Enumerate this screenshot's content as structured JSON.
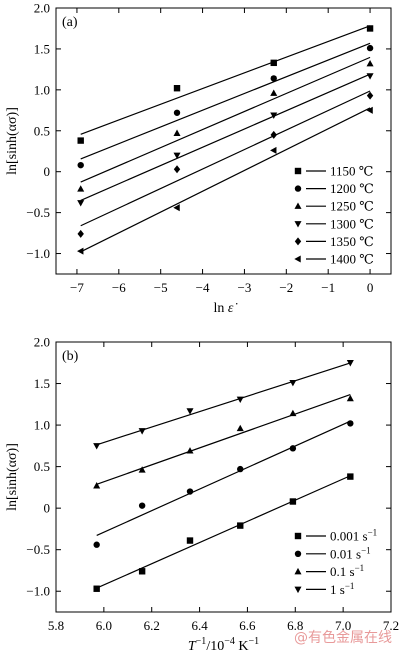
{
  "chart_data": [
    {
      "panel_label": "(a)",
      "type": "scatter",
      "xlabel_main": "ln ",
      "xlabel_sym": "ε̇",
      "ylabel": "ln[sinh(ασ)]",
      "xlim": [
        -7.5,
        0.5
      ],
      "ylim": [
        -1.25,
        2.0
      ],
      "xticks": [
        -7,
        -6,
        -5,
        -4,
        -3,
        -2,
        -1,
        0
      ],
      "xtick_labels": [
        "−7",
        "−6",
        "−5",
        "−4",
        "−3",
        "−2",
        "−1",
        "0"
      ],
      "yticks": [
        -1.0,
        -0.5,
        0,
        0.5,
        1.0,
        1.5,
        2.0
      ],
      "ytick_labels": [
        "−1.0",
        "−0.5",
        "0",
        "0.5",
        "1.0",
        "1.5",
        "2.0"
      ],
      "legend_position": "lower-right",
      "series": [
        {
          "name": "1150 ℃",
          "marker": "square",
          "x": [
            -6.91,
            -4.61,
            -2.3,
            0
          ],
          "y": [
            0.38,
            1.02,
            1.33,
            1.75
          ]
        },
        {
          "name": "1200 ℃",
          "marker": "circle",
          "x": [
            -6.91,
            -4.61,
            -2.3,
            0
          ],
          "y": [
            0.08,
            0.72,
            1.14,
            1.51
          ]
        },
        {
          "name": "1250 ℃",
          "marker": "triangle-up",
          "x": [
            -6.91,
            -4.61,
            -2.3,
            0
          ],
          "y": [
            -0.21,
            0.47,
            0.96,
            1.32
          ]
        },
        {
          "name": "1300 ℃",
          "marker": "triangle-down",
          "x": [
            -6.91,
            -4.61,
            -2.3,
            0
          ],
          "y": [
            -0.38,
            0.2,
            0.69,
            1.17
          ]
        },
        {
          "name": "1350 ℃",
          "marker": "diamond",
          "x": [
            -6.91,
            -4.61,
            -2.3,
            0
          ],
          "y": [
            -0.76,
            0.03,
            0.45,
            0.93
          ]
        },
        {
          "name": "1400 ℃",
          "marker": "triangle-left",
          "x": [
            -6.91,
            -4.61,
            -2.3,
            0
          ],
          "y": [
            -0.97,
            -0.44,
            0.26,
            0.75
          ]
        }
      ]
    },
    {
      "panel_label": "(b)",
      "type": "scatter",
      "xlabel_main": "T",
      "xlabel_rest": "/10",
      "xlabel_unit": "K",
      "ylabel": "ln[sinh(ασ)]",
      "xlim": [
        5.8,
        7.2
      ],
      "ylim": [
        -1.25,
        2.0
      ],
      "xticks": [
        5.8,
        6.0,
        6.2,
        6.4,
        6.6,
        6.8,
        7.0,
        7.2
      ],
      "xtick_labels": [
        "5.8",
        "6.0",
        "6.2",
        "6.4",
        "6.6",
        "6.8",
        "7.0",
        "7.2"
      ],
      "yticks": [
        -1.0,
        -0.5,
        0,
        0.5,
        1.0,
        1.5,
        2.0
      ],
      "ytick_labels": [
        "−1.0",
        "−0.5",
        "0",
        "0.5",
        "1.0",
        "1.5",
        "2.0"
      ],
      "legend_position": "lower-right",
      "series": [
        {
          "name": "0.001 s",
          "marker": "square",
          "x": [
            5.97,
            6.16,
            6.36,
            6.57,
            6.79,
            7.03
          ],
          "y": [
            -0.97,
            -0.76,
            -0.39,
            -0.21,
            0.08,
            0.38
          ]
        },
        {
          "name": "0.01 s",
          "marker": "circle",
          "x": [
            5.97,
            6.16,
            6.36,
            6.57,
            6.79,
            7.03
          ],
          "y": [
            -0.44,
            0.03,
            0.2,
            0.47,
            0.72,
            1.02
          ]
        },
        {
          "name": "0.1 s",
          "marker": "triangle-up",
          "x": [
            5.97,
            6.16,
            6.36,
            6.57,
            6.79,
            7.03
          ],
          "y": [
            0.27,
            0.46,
            0.69,
            0.96,
            1.14,
            1.32
          ]
        },
        {
          "name": "1 s",
          "marker": "triangle-down",
          "x": [
            5.97,
            6.16,
            6.36,
            6.57,
            6.79,
            7.03
          ],
          "y": [
            0.75,
            0.93,
            1.17,
            1.31,
            1.51,
            1.75
          ]
        }
      ]
    }
  ],
  "watermark": "@有色金属在线"
}
